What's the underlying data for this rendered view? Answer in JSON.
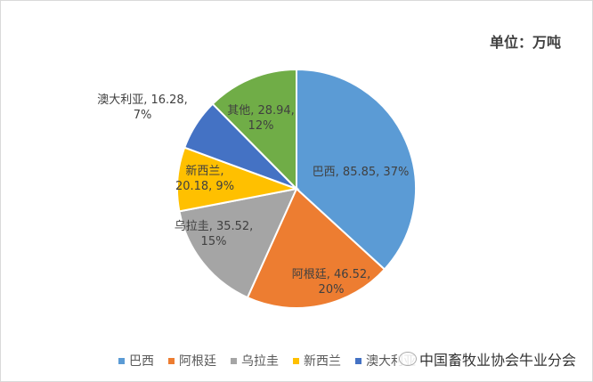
{
  "unit_label": "单位：万吨",
  "watermark": "中国畜牧业协会牛业分会",
  "chart_data": {
    "type": "pie",
    "start": "top",
    "direction": "clockwise",
    "legend_position": "bottom",
    "slices": [
      {
        "name": "巴西",
        "value": 85.85,
        "percent": "37%",
        "color": "#5b9bd5",
        "label": "巴西, 85.85, 37%"
      },
      {
        "name": "阿根廷",
        "value": 46.52,
        "percent": "20%",
        "color": "#ed7d31",
        "label": "阿根廷, 46.52, 20%"
      },
      {
        "name": "乌拉圭",
        "value": 35.52,
        "percent": "15%",
        "color": "#a5a5a5",
        "label": "乌拉圭, 35.52, 15%"
      },
      {
        "name": "新西兰",
        "value": 20.18,
        "percent": "9%",
        "color": "#ffc000",
        "label": "新西兰, 20.18, 9%"
      },
      {
        "name": "澳大利亚",
        "value": 16.28,
        "percent": "7%",
        "color": "#4472c4",
        "label": "澳大利亚, 16.28, 7%"
      },
      {
        "name": "其他",
        "value": 28.94,
        "percent": "12%",
        "color": "#70ad47",
        "label": "其他, 28.94, 12%"
      }
    ],
    "legend": [
      "巴西",
      "阿根廷",
      "乌拉圭",
      "新西兰",
      "澳大利亚"
    ]
  }
}
